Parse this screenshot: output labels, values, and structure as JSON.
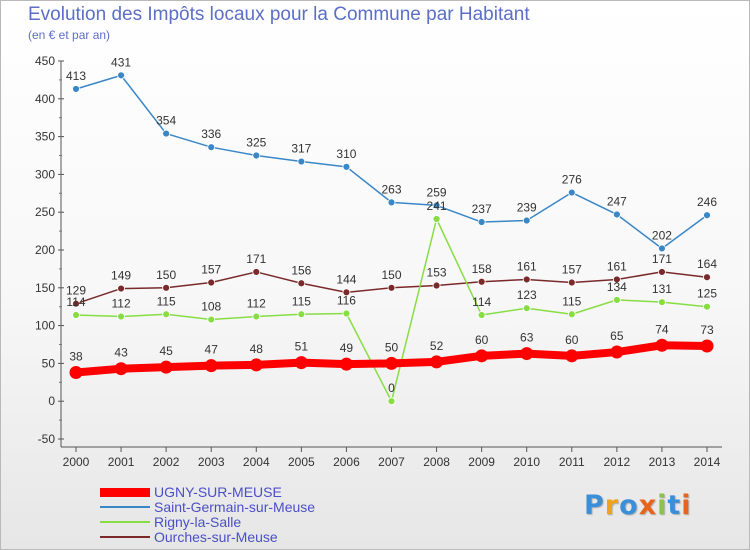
{
  "chart_data": {
    "type": "line",
    "title": "Evolution des Impôts locaux pour la Commune par Habitant",
    "subtitle": "(en € et par an)",
    "xlabel": "",
    "ylabel": "",
    "ylim": [
      -50,
      450
    ],
    "yticks": [
      -50,
      0,
      50,
      100,
      150,
      200,
      250,
      300,
      350,
      400,
      450
    ],
    "categories": [
      "2000",
      "2001",
      "2002",
      "2003",
      "2004",
      "2005",
      "2006",
      "2007",
      "2008",
      "2009",
      "2010",
      "2011",
      "2012",
      "2013",
      "2014"
    ],
    "series": [
      {
        "name": "UGNY-SUR-MEUSE",
        "color": "#ff0000",
        "values": [
          38,
          43,
          45,
          47,
          48,
          51,
          49,
          50,
          52,
          60,
          63,
          60,
          65,
          74,
          73
        ]
      },
      {
        "name": "Saint-Germain-sur-Meuse",
        "color": "#3a87c8",
        "values": [
          413,
          431,
          354,
          336,
          325,
          317,
          310,
          263,
          259,
          237,
          239,
          276,
          247,
          202,
          246
        ]
      },
      {
        "name": "Rigny-la-Salle",
        "color": "#88dd44",
        "values": [
          114,
          112,
          115,
          108,
          112,
          115,
          116,
          0,
          241,
          114,
          123,
          115,
          134,
          131,
          125
        ]
      },
      {
        "name": "Ourches-sur-Meuse",
        "color": "#7a2a2a",
        "values": [
          129,
          149,
          150,
          157,
          171,
          156,
          144,
          150,
          153,
          158,
          161,
          157,
          161,
          171,
          164
        ]
      }
    ],
    "legend_position": "bottom-left"
  },
  "logo": {
    "text": "Proxiti",
    "colors": [
      "#3b8fd8",
      "#f2a11a",
      "#3b8fd8",
      "#e8641c",
      "#8bc34a",
      "#3b8fd8",
      "#e8641c"
    ]
  }
}
